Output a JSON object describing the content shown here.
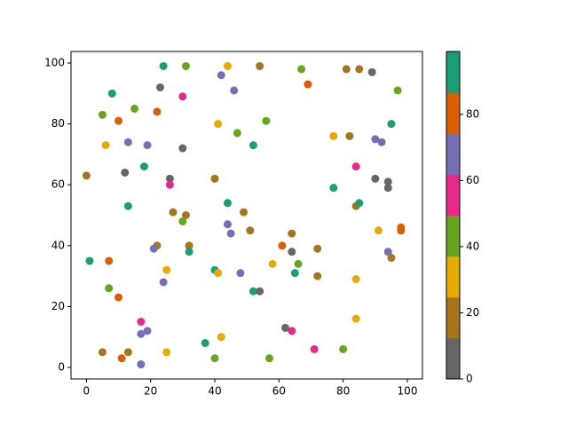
{
  "chart_data": {
    "type": "scatter",
    "x": [
      24,
      31,
      44,
      54,
      67,
      81,
      85,
      89,
      42,
      23,
      69,
      46,
      97,
      8,
      30,
      5,
      15,
      22,
      10,
      41,
      56,
      95,
      47,
      77,
      82,
      13,
      19,
      6,
      30,
      52,
      90,
      92,
      84,
      18,
      12,
      0,
      26,
      40,
      26,
      90,
      94,
      94,
      77,
      13,
      44,
      84,
      85,
      27,
      31,
      49,
      30,
      44,
      45,
      51,
      64,
      91,
      98,
      98,
      22,
      21,
      32,
      32,
      61,
      64,
      72,
      94,
      95,
      1,
      7,
      58,
      66,
      25,
      40,
      41,
      48,
      65,
      72,
      84,
      24,
      7,
      52,
      54,
      10,
      17,
      84,
      62,
      64,
      19,
      17,
      42,
      37,
      71,
      80,
      5,
      13,
      25,
      11,
      40,
      57,
      17
    ],
    "y": [
      99,
      99,
      99,
      99,
      98,
      98,
      98,
      97,
      96,
      92,
      93,
      91,
      91,
      90,
      89,
      83,
      85,
      84,
      81,
      80,
      81,
      80,
      77,
      76,
      76,
      74,
      73,
      73,
      72,
      73,
      75,
      74,
      66,
      66,
      64,
      63,
      62,
      62,
      60,
      62,
      61,
      59,
      59,
      53,
      54,
      53,
      54,
      51,
      50,
      51,
      48,
      47,
      44,
      45,
      44,
      45,
      46,
      45,
      40,
      39,
      40,
      38,
      40,
      38,
      39,
      38,
      36,
      35,
      35,
      34,
      34,
      32,
      32,
      31,
      31,
      31,
      30,
      29,
      28,
      26,
      25,
      25,
      23,
      15,
      16,
      13,
      12,
      12,
      11,
      10,
      8,
      6,
      6,
      5,
      5,
      5,
      3,
      3,
      3,
      1
    ],
    "c": [
      93,
      43,
      31,
      19,
      43,
      19,
      19,
      6,
      68,
      6,
      80,
      68,
      43,
      93,
      56,
      43,
      43,
      80,
      80,
      31,
      43,
      93,
      43,
      31,
      19,
      68,
      68,
      31,
      6,
      93,
      68,
      68,
      56,
      93,
      6,
      19,
      6,
      19,
      56,
      6,
      6,
      6,
      93,
      93,
      93,
      19,
      93,
      19,
      19,
      19,
      43,
      68,
      68,
      19,
      19,
      31,
      80,
      80,
      19,
      68,
      19,
      93,
      80,
      6,
      19,
      68,
      19,
      93,
      80,
      31,
      43,
      31,
      93,
      31,
      68,
      93,
      19,
      31,
      68,
      43,
      93,
      6,
      80,
      56,
      31,
      6,
      56,
      68,
      68,
      31,
      93,
      56,
      43,
      19,
      19,
      31,
      80,
      43,
      43,
      68
    ],
    "colormap": [
      "#666666",
      "#a6761d",
      "#e6ab02",
      "#66a61e",
      "#e7298a",
      "#7570b3",
      "#d95f02",
      "#1b9e77"
    ],
    "clim": [
      0,
      99
    ],
    "cticks": [
      0,
      20,
      40,
      60,
      80
    ],
    "xlim": [
      -4.8,
      104.7
    ],
    "ylim": [
      -3.8,
      103.8
    ],
    "xticks": [
      0,
      20,
      40,
      60,
      80,
      100
    ],
    "yticks": [
      0,
      20,
      40,
      60,
      80,
      100
    ]
  }
}
